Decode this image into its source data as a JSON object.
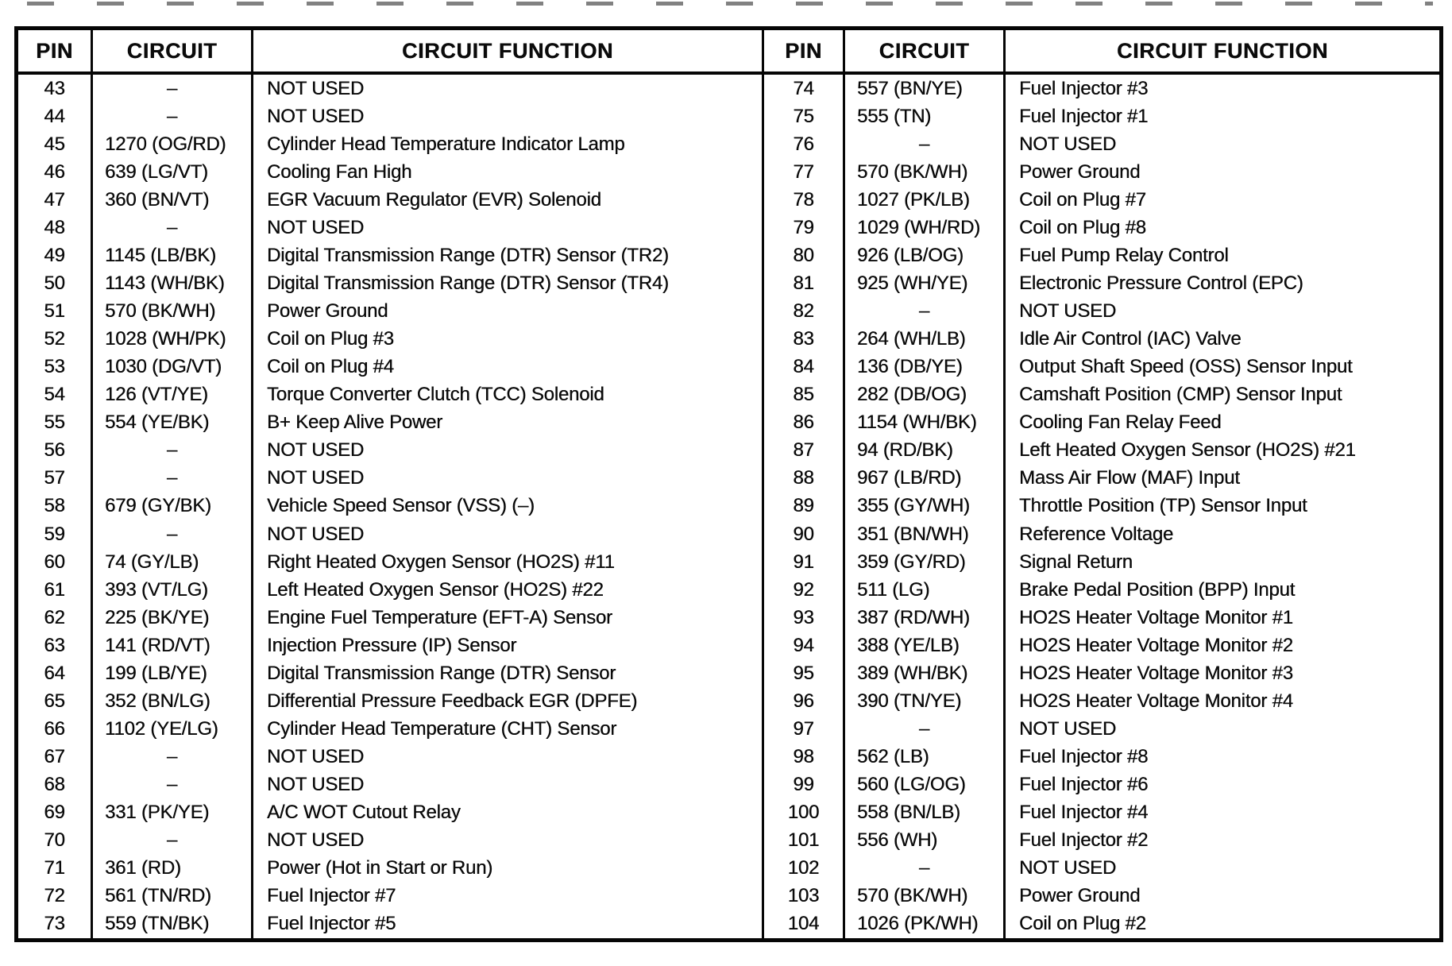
{
  "page": {
    "background": "#ffffff",
    "text_color": "#0b0b0b",
    "border_color": "#060606"
  },
  "table": {
    "headers": {
      "pin": "PIN",
      "circuit": "CIRCUIT",
      "function": "CIRCUIT FUNCTION"
    },
    "not_used_dash": "–",
    "left_rows": [
      {
        "pin": "43",
        "circuit": "–",
        "function": "NOT USED"
      },
      {
        "pin": "44",
        "circuit": "–",
        "function": "NOT USED"
      },
      {
        "pin": "45",
        "circuit": "1270 (OG/RD)",
        "function": "Cylinder Head Temperature Indicator Lamp"
      },
      {
        "pin": "46",
        "circuit": "639 (LG/VT)",
        "function": "Cooling Fan High"
      },
      {
        "pin": "47",
        "circuit": "360 (BN/VT)",
        "function": "EGR Vacuum Regulator (EVR) Solenoid"
      },
      {
        "pin": "48",
        "circuit": "–",
        "function": "NOT USED"
      },
      {
        "pin": "49",
        "circuit": "1145 (LB/BK)",
        "function": "Digital Transmission Range (DTR) Sensor (TR2)"
      },
      {
        "pin": "50",
        "circuit": "1143 (WH/BK)",
        "function": "Digital Transmission Range (DTR) Sensor (TR4)"
      },
      {
        "pin": "51",
        "circuit": "570 (BK/WH)",
        "function": "Power Ground"
      },
      {
        "pin": "52",
        "circuit": "1028 (WH/PK)",
        "function": "Coil on Plug #3"
      },
      {
        "pin": "53",
        "circuit": "1030 (DG/VT)",
        "function": "Coil on Plug #4"
      },
      {
        "pin": "54",
        "circuit": "126 (VT/YE)",
        "function": "Torque Converter Clutch (TCC) Solenoid"
      },
      {
        "pin": "55",
        "circuit": "554 (YE/BK)",
        "function": "B+ Keep Alive Power"
      },
      {
        "pin": "56",
        "circuit": "–",
        "function": "NOT USED"
      },
      {
        "pin": "57",
        "circuit": "–",
        "function": "NOT USED"
      },
      {
        "pin": "58",
        "circuit": "679 (GY/BK)",
        "function": "Vehicle Speed Sensor (VSS) (–)"
      },
      {
        "pin": "59",
        "circuit": "–",
        "function": "NOT USED"
      },
      {
        "pin": "60",
        "circuit": "74 (GY/LB)",
        "function": "Right Heated Oxygen Sensor (HO2S) #11"
      },
      {
        "pin": "61",
        "circuit": "393 (VT/LG)",
        "function": "Left Heated Oxygen Sensor (HO2S) #22"
      },
      {
        "pin": "62",
        "circuit": "225 (BK/YE)",
        "function": "Engine Fuel Temperature (EFT-A) Sensor"
      },
      {
        "pin": "63",
        "circuit": "141 (RD/VT)",
        "function": "Injection Pressure (IP) Sensor"
      },
      {
        "pin": "64",
        "circuit": "199 (LB/YE)",
        "function": "Digital Transmission Range (DTR) Sensor"
      },
      {
        "pin": "65",
        "circuit": "352 (BN/LG)",
        "function": "Differential Pressure Feedback EGR (DPFE)"
      },
      {
        "pin": "66",
        "circuit": "1102 (YE/LG)",
        "function": "Cylinder Head Temperature (CHT) Sensor"
      },
      {
        "pin": "67",
        "circuit": "–",
        "function": "NOT USED"
      },
      {
        "pin": "68",
        "circuit": "–",
        "function": "NOT USED"
      },
      {
        "pin": "69",
        "circuit": "331 (PK/YE)",
        "function": "A/C WOT Cutout Relay"
      },
      {
        "pin": "70",
        "circuit": "–",
        "function": "NOT USED"
      },
      {
        "pin": "71",
        "circuit": "361 (RD)",
        "function": "Power (Hot in Start or Run)"
      },
      {
        "pin": "72",
        "circuit": "561 (TN/RD)",
        "function": "Fuel Injector #7"
      },
      {
        "pin": "73",
        "circuit": "559 (TN/BK)",
        "function": "Fuel Injector #5"
      }
    ],
    "right_rows": [
      {
        "pin": "74",
        "circuit": "557 (BN/YE)",
        "function": "Fuel Injector #3"
      },
      {
        "pin": "75",
        "circuit": "555 (TN)",
        "function": "Fuel Injector #1"
      },
      {
        "pin": "76",
        "circuit": "–",
        "function": "NOT USED"
      },
      {
        "pin": "77",
        "circuit": "570 (BK/WH)",
        "function": "Power Ground"
      },
      {
        "pin": "78",
        "circuit": "1027 (PK/LB)",
        "function": "Coil on Plug #7"
      },
      {
        "pin": "79",
        "circuit": "1029 (WH/RD)",
        "function": "Coil on Plug #8"
      },
      {
        "pin": "80",
        "circuit": "926 (LB/OG)",
        "function": "Fuel Pump Relay Control"
      },
      {
        "pin": "81",
        "circuit": "925 (WH/YE)",
        "function": "Electronic Pressure Control (EPC)"
      },
      {
        "pin": "82",
        "circuit": "–",
        "function": "NOT USED"
      },
      {
        "pin": "83",
        "circuit": "264 (WH/LB)",
        "function": "Idle Air Control (IAC) Valve"
      },
      {
        "pin": "84",
        "circuit": "136 (DB/YE)",
        "function": "Output Shaft Speed (OSS) Sensor Input"
      },
      {
        "pin": "85",
        "circuit": "282 (DB/OG)",
        "function": "Camshaft Position (CMP) Sensor Input"
      },
      {
        "pin": "86",
        "circuit": "1154 (WH/BK)",
        "function": "Cooling Fan Relay Feed"
      },
      {
        "pin": "87",
        "circuit": "94 (RD/BK)",
        "function": "Left Heated Oxygen Sensor (HO2S) #21"
      },
      {
        "pin": "88",
        "circuit": "967 (LB/RD)",
        "function": "Mass Air Flow (MAF) Input"
      },
      {
        "pin": "89",
        "circuit": "355 (GY/WH)",
        "function": "Throttle Position (TP) Sensor Input"
      },
      {
        "pin": "90",
        "circuit": "351 (BN/WH)",
        "function": "Reference Voltage"
      },
      {
        "pin": "91",
        "circuit": "359 (GY/RD)",
        "function": "Signal Return"
      },
      {
        "pin": "92",
        "circuit": "511 (LG)",
        "function": "Brake Pedal Position (BPP) Input"
      },
      {
        "pin": "93",
        "circuit": "387 (RD/WH)",
        "function": "HO2S Heater Voltage Monitor #1"
      },
      {
        "pin": "94",
        "circuit": "388 (YE/LB)",
        "function": "HO2S Heater Voltage Monitor #2"
      },
      {
        "pin": "95",
        "circuit": "389 (WH/BK)",
        "function": "HO2S Heater Voltage Monitor #3"
      },
      {
        "pin": "96",
        "circuit": "390 (TN/YE)",
        "function": "HO2S Heater Voltage Monitor #4"
      },
      {
        "pin": "97",
        "circuit": "–",
        "function": "NOT USED"
      },
      {
        "pin": "98",
        "circuit": "562 (LB)",
        "function": "Fuel Injector #8"
      },
      {
        "pin": "99",
        "circuit": "560 (LG/OG)",
        "function": "Fuel Injector #6"
      },
      {
        "pin": "100",
        "circuit": "558 (BN/LB)",
        "function": "Fuel Injector #4"
      },
      {
        "pin": "101",
        "circuit": "556 (WH)",
        "function": "Fuel Injector #2"
      },
      {
        "pin": "102",
        "circuit": "–",
        "function": "NOT USED"
      },
      {
        "pin": "103",
        "circuit": "570 (BK/WH)",
        "function": "Power Ground"
      },
      {
        "pin": "104",
        "circuit": "1026 (PK/WH)",
        "function": "Coil on Plug #2"
      }
    ]
  }
}
